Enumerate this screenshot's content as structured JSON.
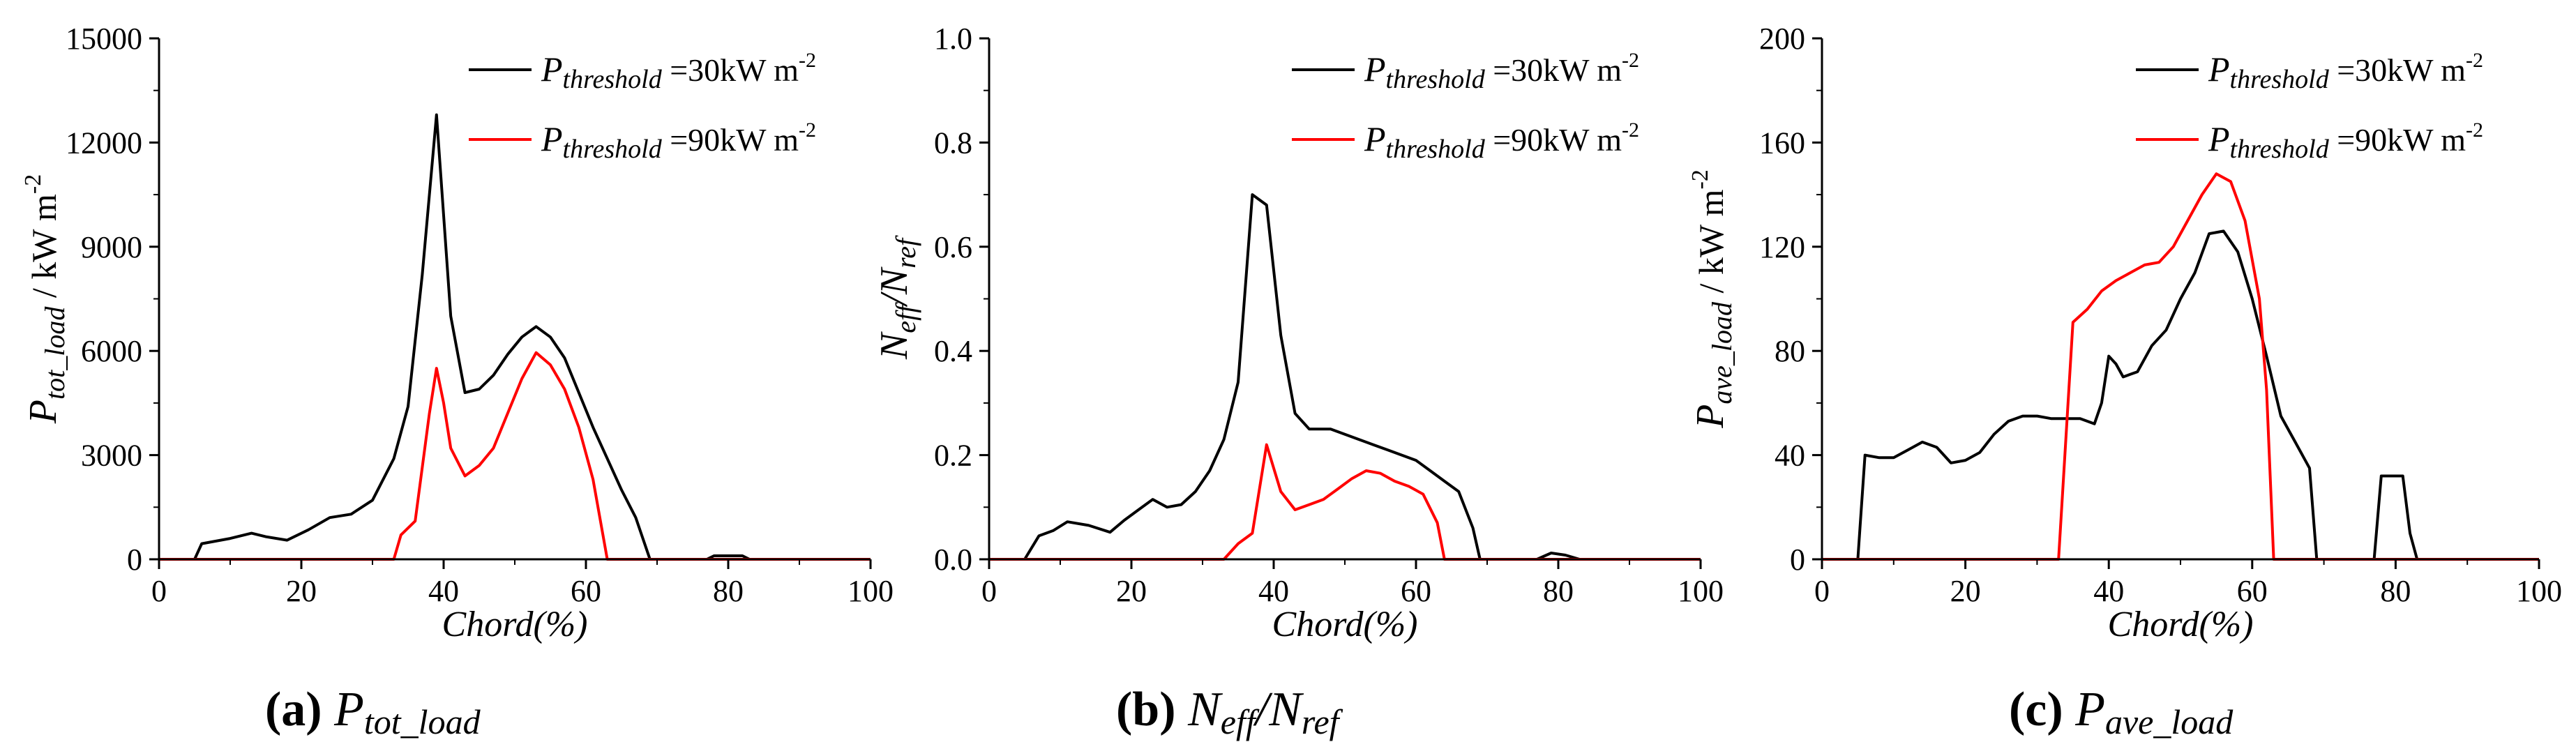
{
  "colors": {
    "series_30": "#000000",
    "series_90": "#ff0000",
    "axis": "#000000"
  },
  "chart_data": [
    {
      "id": "a",
      "type": "line",
      "caption": {
        "label": "(a)",
        "main": "P",
        "sub": "tot_load"
      },
      "xlabel": "Chord(%)",
      "ylabel": {
        "main": "P",
        "sub": "tot_load",
        "unit": " / kW m",
        "sup": "-2"
      },
      "xlim": [
        0,
        100
      ],
      "ylim": [
        0,
        15000
      ],
      "xticks": [
        "0",
        "20",
        "40",
        "60",
        "80",
        "100"
      ],
      "yticks": [
        "0",
        "3000",
        "6000",
        "9000",
        "12000",
        "15000"
      ],
      "legend": [
        {
          "sym": "P",
          "sub": "threshold",
          "text": " =30kW m",
          "sup": "-2"
        },
        {
          "sym": "P",
          "sub": "threshold",
          "text": " =90kW m",
          "sup": "-2"
        }
      ],
      "series": [
        {
          "name": "P_threshold = 30 kW m-2",
          "x": [
            0,
            5,
            6,
            10,
            13,
            15,
            18,
            21,
            24,
            27,
            30,
            33,
            35,
            37,
            39,
            41,
            43,
            45,
            47,
            49,
            51,
            53,
            55,
            57,
            59,
            61,
            63,
            65,
            67,
            69,
            70,
            77,
            78,
            82,
            83,
            100
          ],
          "y": [
            0,
            0,
            450,
            600,
            750,
            650,
            550,
            850,
            1200,
            1300,
            1700,
            2900,
            4400,
            8200,
            12800,
            7000,
            4800,
            4900,
            5300,
            5900,
            6400,
            6700,
            6400,
            5800,
            4800,
            3800,
            2900,
            2000,
            1200,
            0,
            0,
            0,
            100,
            100,
            0,
            0
          ]
        },
        {
          "name": "P_threshold = 90 kW m-2",
          "x": [
            0,
            33,
            34,
            36,
            38,
            39,
            40,
            41,
            43,
            45,
            47,
            49,
            51,
            53,
            55,
            57,
            59,
            61,
            63,
            64,
            100
          ],
          "y": [
            0,
            0,
            700,
            1100,
            4200,
            5500,
            4500,
            3200,
            2400,
            2700,
            3200,
            4200,
            5200,
            5950,
            5600,
            4900,
            3800,
            2300,
            0,
            0,
            0
          ]
        }
      ]
    },
    {
      "id": "b",
      "type": "line",
      "caption": {
        "label": "(b)",
        "main": "N",
        "sub": "eff",
        "main2": "/N",
        "sub2": "ref"
      },
      "xlabel": "Chord(%)",
      "ylabel": {
        "main": "N",
        "sub": "eff",
        "main2": "/N",
        "sub2": "ref"
      },
      "xlim": [
        0,
        100
      ],
      "ylim": [
        0,
        1.0
      ],
      "xticks": [
        "0",
        "20",
        "40",
        "60",
        "80",
        "100"
      ],
      "yticks": [
        "0.0",
        "0.2",
        "0.4",
        "0.6",
        "0.8",
        "1.0"
      ],
      "legend": [
        {
          "sym": "P",
          "sub": "threshold",
          "text": " =30kW m",
          "sup": "-2"
        },
        {
          "sym": "P",
          "sub": "threshold",
          "text": " =90kW m",
          "sup": "-2"
        }
      ],
      "series": [
        {
          "name": "P_threshold = 30 kW m-2",
          "x": [
            0,
            5,
            7,
            9,
            11,
            14,
            17,
            19,
            21,
            23,
            25,
            27,
            29,
            31,
            33,
            35,
            37,
            39,
            41,
            43,
            45,
            48,
            50,
            52,
            54,
            56,
            58,
            60,
            62,
            64,
            66,
            68,
            69,
            77,
            79,
            81,
            83,
            100
          ],
          "y": [
            0,
            0,
            0.045,
            0.055,
            0.072,
            0.065,
            0.052,
            0.075,
            0.095,
            0.115,
            0.1,
            0.105,
            0.13,
            0.17,
            0.23,
            0.34,
            0.7,
            0.68,
            0.43,
            0.28,
            0.25,
            0.25,
            0.24,
            0.23,
            0.22,
            0.21,
            0.2,
            0.19,
            0.17,
            0.15,
            0.13,
            0.06,
            0,
            0,
            0.012,
            0.008,
            0,
            0
          ]
        },
        {
          "name": "P_threshold = 90 kW m-2",
          "x": [
            0,
            33,
            35,
            37,
            39,
            41,
            43,
            45,
            47,
            49,
            51,
            53,
            55,
            57,
            59,
            61,
            63,
            64,
            100
          ],
          "y": [
            0,
            0,
            0.03,
            0.05,
            0.22,
            0.13,
            0.095,
            0.105,
            0.115,
            0.135,
            0.155,
            0.17,
            0.165,
            0.15,
            0.14,
            0.125,
            0.07,
            0,
            0
          ]
        }
      ]
    },
    {
      "id": "c",
      "type": "line",
      "caption": {
        "label": "(c)",
        "main": "P",
        "sub": "ave_load"
      },
      "xlabel": "Chord(%)",
      "ylabel": {
        "main": "P",
        "sub": "ave_load",
        "unit": " / kW m",
        "sup": "-2"
      },
      "xlim": [
        0,
        100
      ],
      "ylim": [
        0,
        200
      ],
      "xticks": [
        "0",
        "20",
        "40",
        "60",
        "80",
        "100"
      ],
      "yticks": [
        "0",
        "40",
        "80",
        "120",
        "160",
        "200"
      ],
      "legend": [
        {
          "sym": "P",
          "sub": "threshold",
          "text": " =30kW m",
          "sup": "-2"
        },
        {
          "sym": "P",
          "sub": "threshold",
          "text": " =90kW m",
          "sup": "-2"
        }
      ],
      "series": [
        {
          "name": "P_threshold = 30 kW m-2",
          "x": [
            0,
            5,
            6,
            8,
            10,
            12,
            14,
            16,
            18,
            20,
            22,
            24,
            26,
            28,
            30,
            32,
            34,
            36,
            37,
            38,
            39,
            40,
            41,
            42,
            43,
            44,
            46,
            48,
            50,
            52,
            54,
            56,
            58,
            60,
            62,
            64,
            66,
            68,
            69,
            77,
            78,
            80,
            81,
            82,
            83,
            100
          ],
          "y": [
            0,
            0,
            40,
            39,
            39,
            42,
            45,
            43,
            37,
            38,
            41,
            48,
            53,
            55,
            55,
            54,
            54,
            54,
            53,
            52,
            60,
            78,
            75,
            70,
            71,
            72,
            82,
            88,
            100,
            110,
            125,
            126,
            118,
            100,
            78,
            55,
            45,
            35,
            0,
            0,
            32,
            32,
            32,
            10,
            0,
            0
          ]
        },
        {
          "name": "P_threshold = 90 kW m-2",
          "x": [
            0,
            33,
            35,
            37,
            39,
            41,
            43,
            45,
            47,
            49,
            51,
            53,
            55,
            57,
            59,
            61,
            62,
            63,
            100
          ],
          "y": [
            0,
            0,
            91,
            96,
            103,
            107,
            110,
            113,
            114,
            120,
            130,
            140,
            148,
            145,
            130,
            100,
            65,
            0,
            0
          ]
        }
      ]
    }
  ]
}
